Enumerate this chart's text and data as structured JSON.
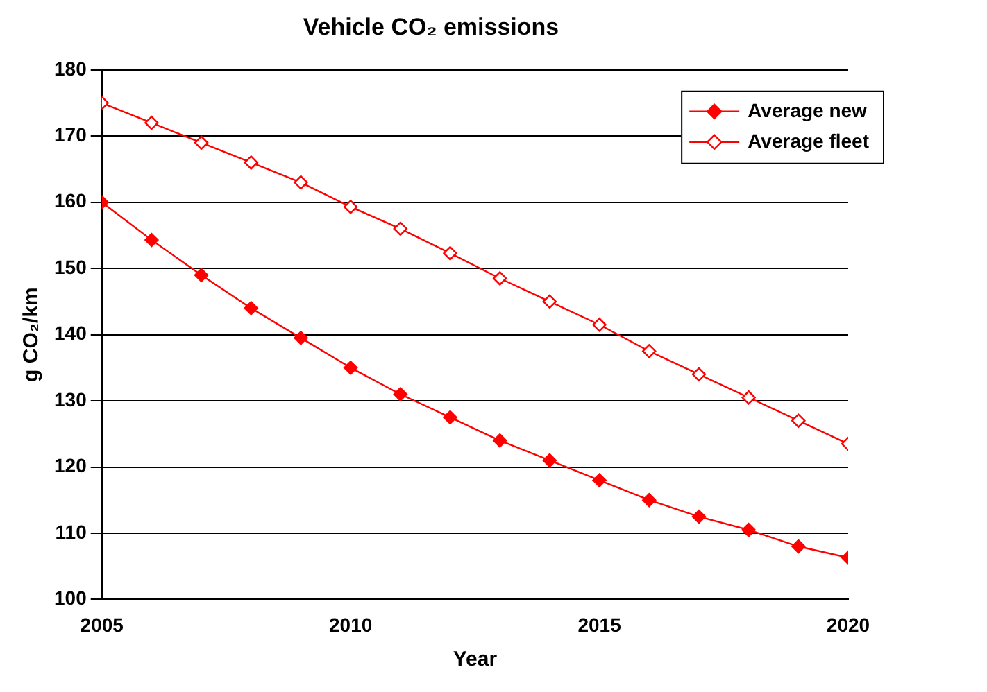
{
  "chart_data": {
    "type": "line",
    "title": "Vehicle CO₂ emissions",
    "xlabel": "Year",
    "ylabel": "g CO₂/km",
    "x": [
      2005,
      2006,
      2007,
      2008,
      2009,
      2010,
      2011,
      2012,
      2013,
      2014,
      2015,
      2016,
      2017,
      2018,
      2019,
      2020
    ],
    "series": [
      {
        "name": "Average new",
        "color": "#ff0000",
        "values": [
          160,
          154.3,
          149,
          144,
          139.5,
          135,
          131,
          127.5,
          124,
          121,
          118,
          115,
          112.5,
          110.5,
          108,
          106.3
        ]
      },
      {
        "name": "Average fleet",
        "color": "#ff0000",
        "values": [
          175,
          172,
          169,
          166,
          163,
          159.3,
          156,
          152.3,
          148.5,
          145,
          141.5,
          137.5,
          134,
          130.5,
          127,
          123.5
        ]
      }
    ],
    "xlim": [
      2005,
      2020
    ],
    "xticks": [
      2005,
      2010,
      2015,
      2020
    ],
    "ylim": [
      100,
      180
    ],
    "yticks": [
      100,
      110,
      120,
      130,
      140,
      150,
      160,
      170,
      180
    ],
    "grid": "y",
    "legend": "top right",
    "marker": "diamond",
    "line_style": "solid"
  }
}
